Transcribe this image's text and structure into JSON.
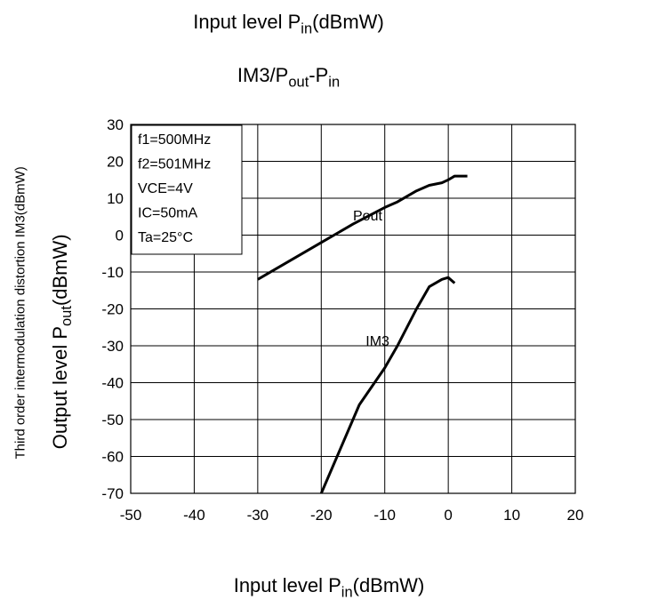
{
  "header": {
    "title_main": "Input level P",
    "title_sub": "in",
    "title_unit": "(dBmW)",
    "subtitle_a": "IM3/P",
    "subtitle_out": "out",
    "subtitle_b": "-P",
    "subtitle_in": "in"
  },
  "axes": {
    "y_outer_label": "Third order intermodulation distortion IM3(dBmW)",
    "y_inner_main": "Output level P",
    "y_inner_sub": "out",
    "y_inner_unit": "(dBmW)",
    "x_main": "Input level P",
    "x_sub": "in",
    "x_unit": "(dBmW)"
  },
  "chart_data": {
    "type": "line",
    "xlim": [
      -50,
      20
    ],
    "ylim": [
      -70,
      30
    ],
    "x_ticks": [
      "-50",
      "-40",
      "-30",
      "-20",
      "-10",
      "0",
      "10",
      "20"
    ],
    "y_ticks": [
      "30",
      "20",
      "10",
      "0",
      "-10",
      "-20",
      "-30",
      "-40",
      "-50",
      "-60",
      "-70"
    ],
    "grid": true,
    "conditions": [
      "f1=500MHz",
      "f2=501MHz",
      "VCE=4V",
      "IC=50mA",
      "Ta=25°C"
    ],
    "series": [
      {
        "name": "Pout",
        "x": [
          -30,
          -25,
          -20,
          -15,
          -10,
          -8,
          -5,
          -3,
          -1,
          0,
          1,
          3
        ],
        "y": [
          -12,
          -7,
          -2,
          3,
          7.5,
          9,
          12,
          13.5,
          14.2,
          15,
          16,
          16
        ]
      },
      {
        "name": "IM3",
        "x": [
          -20,
          -17,
          -14,
          -10,
          -8,
          -5,
          -3,
          -1,
          0,
          1
        ],
        "y": [
          -70,
          -58,
          -46,
          -36,
          -30,
          -20,
          -14,
          -12,
          -11.5,
          -13
        ]
      }
    ],
    "series_labels": {
      "Pout": "Pout",
      "IM3": "IM3"
    }
  }
}
